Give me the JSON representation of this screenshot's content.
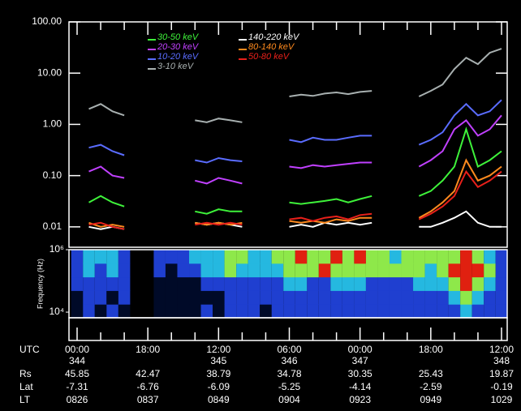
{
  "chart_data": [
    {
      "type": "line",
      "log_y": true,
      "categories": [
        null,
        null,
        null,
        null,
        null,
        null,
        null,
        null,
        null,
        null,
        null,
        null,
        null,
        null,
        null,
        null,
        null,
        null,
        null,
        null,
        null,
        null,
        null,
        null,
        null,
        null,
        null,
        null,
        null,
        null,
        null,
        null,
        null,
        null,
        null,
        null,
        null
      ],
      "ylim": [
        0.004,
        100
      ],
      "yticks": [
        {
          "value": 100,
          "label": "100.00"
        },
        {
          "value": 10,
          "label": "10.00"
        },
        {
          "value": 1,
          "label": "1.00"
        },
        {
          "value": 0.1,
          "label": "0.10"
        },
        {
          "value": 0.01,
          "label": "0.01"
        }
      ],
      "series": [
        {
          "name": "30-50 keV",
          "color": "#3ef23a",
          "values": [
            null,
            0.03,
            0.04,
            0.03,
            0.025,
            null,
            null,
            null,
            null,
            null,
            0.02,
            0.018,
            0.022,
            0.02,
            0.02,
            null,
            null,
            null,
            0.03,
            0.028,
            0.03,
            0.032,
            0.035,
            0.03,
            0.035,
            0.04,
            null,
            null,
            null,
            0.04,
            0.05,
            0.08,
            0.15,
            0.8,
            0.15,
            0.2,
            0.3
          ]
        },
        {
          "name": "20-30 keV",
          "color": "#c040ff",
          "values": [
            null,
            0.12,
            0.15,
            0.1,
            0.09,
            null,
            null,
            null,
            null,
            null,
            0.08,
            0.07,
            0.09,
            0.08,
            0.07,
            null,
            null,
            null,
            0.15,
            0.14,
            0.16,
            0.15,
            0.16,
            0.17,
            0.18,
            0.18,
            null,
            null,
            null,
            0.15,
            0.2,
            0.3,
            0.8,
            1.2,
            0.6,
            0.8,
            1.5
          ]
        },
        {
          "name": "10-20 keV",
          "color": "#5a6cff",
          "values": [
            null,
            0.35,
            0.4,
            0.3,
            0.25,
            null,
            null,
            null,
            null,
            null,
            0.2,
            0.18,
            0.22,
            0.2,
            0.19,
            null,
            null,
            null,
            0.5,
            0.45,
            0.55,
            0.5,
            0.5,
            0.55,
            0.6,
            0.6,
            null,
            null,
            null,
            0.4,
            0.5,
            0.7,
            1.5,
            2.5,
            1.5,
            1.8,
            3.0
          ]
        },
        {
          "name": "3-10 keV",
          "color": "#a8b0b0",
          "values": [
            null,
            2.0,
            2.5,
            1.8,
            1.5,
            null,
            null,
            null,
            null,
            null,
            1.2,
            1.1,
            1.3,
            1.2,
            1.1,
            null,
            null,
            null,
            3.5,
            3.8,
            3.6,
            4.0,
            4.2,
            3.9,
            4.3,
            4.5,
            null,
            null,
            null,
            3.5,
            4.5,
            6,
            12,
            20,
            15,
            25,
            30
          ]
        },
        {
          "name": "140-220 keV",
          "color": "#ffffff",
          "values": [
            null,
            0.01,
            0.009,
            0.01,
            0.009,
            null,
            null,
            null,
            null,
            null,
            0.012,
            0.011,
            0.012,
            0.011,
            0.01,
            null,
            null,
            null,
            0.01,
            0.011,
            0.01,
            0.012,
            0.011,
            0.012,
            0.011,
            0.012,
            null,
            null,
            null,
            0.01,
            0.01,
            0.012,
            0.015,
            0.02,
            0.012,
            0.01,
            0.01
          ]
        },
        {
          "name": "80-140 keV",
          "color": "#ff8a1e",
          "values": [
            null,
            0.012,
            0.01,
            0.011,
            0.01,
            null,
            null,
            null,
            null,
            null,
            0.012,
            0.011,
            0.012,
            0.011,
            0.012,
            null,
            null,
            null,
            0.013,
            0.012,
            0.013,
            0.012,
            0.014,
            0.013,
            0.015,
            0.015,
            null,
            null,
            null,
            0.015,
            0.02,
            0.03,
            0.05,
            0.2,
            0.08,
            0.1,
            0.15
          ]
        },
        {
          "name": "50-80 keV",
          "color": "#e8201a",
          "values": [
            null,
            0.011,
            0.012,
            0.01,
            0.009,
            null,
            null,
            null,
            null,
            null,
            0.011,
            0.012,
            0.011,
            0.012,
            0.011,
            null,
            null,
            null,
            0.014,
            0.015,
            0.013,
            0.015,
            0.016,
            0.014,
            0.017,
            0.018,
            null,
            null,
            null,
            0.014,
            0.018,
            0.025,
            0.04,
            0.12,
            0.06,
            0.08,
            0.12
          ]
        }
      ]
    },
    {
      "type": "heatmap",
      "log_y": true,
      "y_label": "Frequency (Hz)",
      "ylim": [
        6600,
        1000000
      ],
      "yticks": [
        {
          "value": 1000000,
          "label": "10⁶"
        },
        {
          "value": 10000,
          "label": "10⁴"
        }
      ],
      "colorscale": [
        "#000a28",
        "#1f3fd0",
        "#25b8e0",
        "#8ee84a",
        "#e02010"
      ],
      "z": [
        [
          0,
          1,
          0,
          1,
          0,
          null,
          null,
          0,
          0,
          0,
          0,
          1,
          0,
          1,
          1,
          1,
          0,
          1,
          1,
          1,
          1,
          1,
          1,
          1,
          1,
          1,
          1,
          1,
          1,
          1,
          1,
          1,
          1,
          2,
          1,
          1,
          1
        ],
        [
          0,
          1,
          1,
          0,
          1,
          null,
          null,
          0,
          0,
          0,
          0,
          0,
          0,
          1,
          1,
          1,
          1,
          1,
          1,
          1,
          1,
          1,
          1,
          1,
          1,
          1,
          1,
          1,
          1,
          1,
          1,
          1,
          2,
          3,
          2,
          1,
          1
        ],
        [
          1,
          1,
          1,
          1,
          1,
          null,
          null,
          0,
          0,
          0,
          0,
          1,
          1,
          1,
          1,
          1,
          1,
          1,
          2,
          2,
          1,
          1,
          2,
          2,
          2,
          1,
          1,
          1,
          1,
          2,
          2,
          2,
          3,
          4,
          3,
          2,
          1
        ],
        [
          1,
          2,
          1,
          2,
          1,
          null,
          null,
          1,
          0,
          1,
          1,
          2,
          2,
          3,
          2,
          2,
          2,
          2,
          3,
          3,
          3,
          4,
          3,
          3,
          3,
          3,
          3,
          3,
          3,
          3,
          2,
          3,
          4,
          4,
          4,
          3,
          1
        ],
        [
          1,
          2,
          2,
          2,
          1,
          null,
          null,
          1,
          1,
          1,
          2,
          2,
          2,
          3,
          3,
          2,
          2,
          3,
          3,
          4,
          3,
          3,
          4,
          3,
          4,
          3,
          3,
          2,
          3,
          3,
          3,
          3,
          3,
          4,
          3,
          2,
          1
        ]
      ]
    }
  ],
  "ephemeris": {
    "labels": [
      "UTC",
      "Rs",
      "Lat",
      "LT"
    ],
    "columns": [
      {
        "time": "00:00",
        "day": "344",
        "rs": 45.85,
        "lat": -7.31,
        "lt": "0826"
      },
      {
        "time": "18:00",
        "rs": 42.47,
        "lat": -6.76,
        "lt": "0837"
      },
      {
        "time": "12:00",
        "day": "345",
        "rs": 38.79,
        "lat": -6.09,
        "lt": "0849"
      },
      {
        "time": "06:00",
        "day": "346",
        "rs": 34.78,
        "lat": -5.25,
        "lt": "0904"
      },
      {
        "time": "00:00",
        "day": "347",
        "rs": 30.35,
        "lat": -4.14,
        "lt": "0923"
      },
      {
        "time": "18:00",
        "rs": 25.43,
        "lat": -2.59,
        "lt": "0949"
      },
      {
        "time": "12:00",
        "day": "348",
        "rs": 19.87,
        "lat": -0.19,
        "lt": "1029"
      }
    ]
  }
}
